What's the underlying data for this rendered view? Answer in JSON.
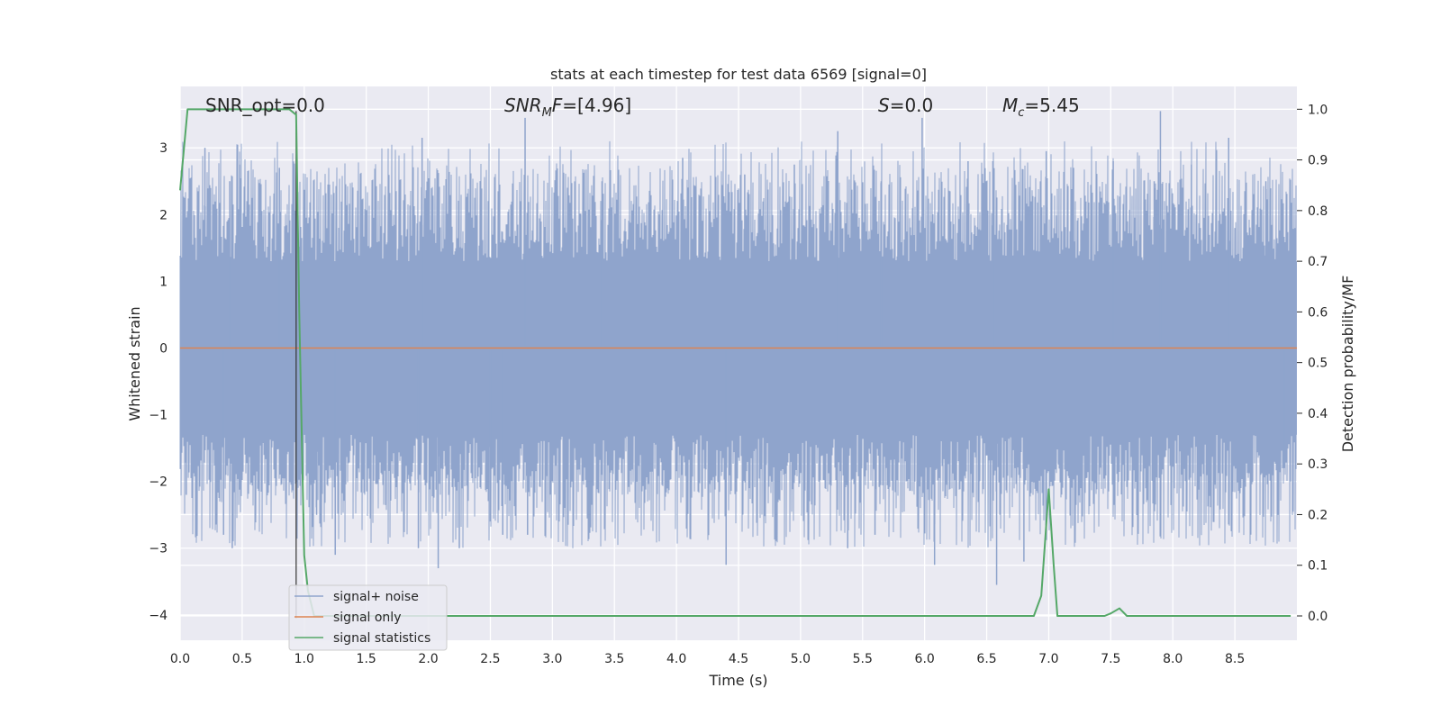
{
  "chart_data": {
    "type": "line",
    "title": "stats at each timestep for test data 6569 [signal=0]",
    "xlabel": "Time (s)",
    "ylabel_left": "Whitened strain",
    "ylabel_right": "Detection probability/MF",
    "xlim": [
      0,
      9
    ],
    "ylim_left": [
      -4.38,
      3.92
    ],
    "ylim_right": [
      -0.048,
      1.045
    ],
    "x_ticks": [
      0.0,
      0.5,
      1.0,
      1.5,
      2.0,
      2.5,
      3.0,
      3.5,
      4.0,
      4.5,
      5.0,
      5.5,
      6.0,
      6.5,
      7.0,
      7.5,
      8.0,
      8.5
    ],
    "x_tick_labels": [
      "0.0",
      "0.5",
      "1.0",
      "1.5",
      "2.0",
      "2.5",
      "3.0",
      "3.5",
      "4.0",
      "4.5",
      "5.0",
      "5.5",
      "6.0",
      "6.5",
      "7.0",
      "7.5",
      "8.0",
      "8.5"
    ],
    "y_ticks_left": [
      3,
      2,
      1,
      0,
      -1,
      -2,
      -3,
      -4
    ],
    "y_tick_labels_left": [
      "3",
      "2",
      "1",
      "0",
      "−1",
      "−2",
      "−3",
      "−4"
    ],
    "y_ticks_right": [
      1.0,
      0.9,
      0.8,
      0.7,
      0.6,
      0.5,
      0.4,
      0.3,
      0.2,
      0.1,
      0.0
    ],
    "y_tick_labels_right": [
      "1.0",
      "0.9",
      "0.8",
      "0.7",
      "0.6",
      "0.5",
      "0.4",
      "0.3",
      "0.2",
      "0.1",
      "0.0"
    ],
    "grid": true,
    "legend_placement": "lower-left",
    "annotations": {
      "snr_opt": "SNR_opt=0.0",
      "snr_mf_italic": "SNR",
      "snr_mf_sub": "M",
      "snr_mf_tail_italic": "F",
      "snr_mf_value": "=[4.96]",
      "s_italic": "S",
      "s_value": "=0.0",
      "mc_italic": "M",
      "mc_sub": "c",
      "mc_value": "=5.45"
    },
    "series": [
      {
        "name": "signal+ noise",
        "color": "#8fa4cc",
        "description": "whitened noisy strain, approx. amplitude ±1.3 with spikes to about ±3.5",
        "noise_band": [
          -1.3,
          1.3
        ],
        "peak_samples": [
          {
            "x": 0.05,
            "y": -2.2
          },
          {
            "x": 0.2,
            "y": 3.0
          },
          {
            "x": 0.35,
            "y": -2.8
          },
          {
            "x": 0.4,
            "y": 2.5
          },
          {
            "x": 0.42,
            "y": -3.0
          },
          {
            "x": 0.48,
            "y": 2.75
          },
          {
            "x": 0.8,
            "y": 2.7
          },
          {
            "x": 1.1,
            "y": -2.5
          },
          {
            "x": 1.25,
            "y": -3.1
          },
          {
            "x": 1.85,
            "y": -2.0
          },
          {
            "x": 1.92,
            "y": -3.0
          },
          {
            "x": 1.95,
            "y": 3.15
          },
          {
            "x": 2.08,
            "y": -3.3
          },
          {
            "x": 2.25,
            "y": -3.0
          },
          {
            "x": 2.5,
            "y": -2.6
          },
          {
            "x": 2.6,
            "y": -2.8
          },
          {
            "x": 2.78,
            "y": 3.45
          },
          {
            "x": 2.8,
            "y": -2.8
          },
          {
            "x": 3.4,
            "y": 2.5
          },
          {
            "x": 4.05,
            "y": 2.85
          },
          {
            "x": 4.4,
            "y": -3.25
          },
          {
            "x": 4.55,
            "y": 2.6
          },
          {
            "x": 4.95,
            "y": 2.75
          },
          {
            "x": 5.3,
            "y": 3.25
          },
          {
            "x": 5.38,
            "y": -3.0
          },
          {
            "x": 5.6,
            "y": -2.8
          },
          {
            "x": 5.65,
            "y": 2.5
          },
          {
            "x": 5.98,
            "y": 3.45
          },
          {
            "x": 6.08,
            "y": -3.25
          },
          {
            "x": 6.35,
            "y": 2.8
          },
          {
            "x": 6.55,
            "y": 2.8
          },
          {
            "x": 6.58,
            "y": -3.55
          },
          {
            "x": 6.8,
            "y": -3.2
          },
          {
            "x": 6.98,
            "y": 2.95
          },
          {
            "x": 7.2,
            "y": 2.7
          },
          {
            "x": 7.52,
            "y": 2.8
          },
          {
            "x": 7.85,
            "y": 2.5
          },
          {
            "x": 7.9,
            "y": 3.55
          },
          {
            "x": 8.15,
            "y": 2.75
          },
          {
            "x": 8.45,
            "y": 3.15
          },
          {
            "x": 8.75,
            "y": 2.5
          },
          {
            "x": 8.9,
            "y": -1.8
          }
        ]
      },
      {
        "name": "signal only",
        "color": "#dd8452",
        "x": [
          0,
          9
        ],
        "y": [
          0,
          0
        ]
      },
      {
        "name": "signal statistics",
        "color": "#55a868",
        "axis": "right",
        "x": [
          0.0,
          0.06,
          0.12,
          0.3,
          0.5,
          0.7,
          0.88,
          0.93,
          0.935,
          0.96,
          1.0,
          1.03,
          1.08,
          1.5,
          3.0,
          5.0,
          6.0,
          6.88,
          6.94,
          7.0,
          7.04,
          7.07,
          7.15,
          7.3,
          7.45,
          7.5,
          7.57,
          7.63,
          7.7,
          8.0,
          8.95
        ],
        "y": [
          0.84,
          1.0,
          1.0,
          1.0,
          1.0,
          1.0,
          1.0,
          0.99,
          0.99,
          0.6,
          0.12,
          0.05,
          0.0,
          0.0,
          0.0,
          0.0,
          0.0,
          0.0,
          0.04,
          0.25,
          0.1,
          0.0,
          0.0,
          0.0,
          0.0,
          0.005,
          0.015,
          0.0,
          0.0,
          0.0,
          0.0
        ]
      },
      {
        "name": "",
        "color": "#333333",
        "description": "vertical marker line",
        "x": [
          0.935,
          0.935
        ],
        "y": [
          3.55,
          -4.05
        ]
      }
    ]
  }
}
